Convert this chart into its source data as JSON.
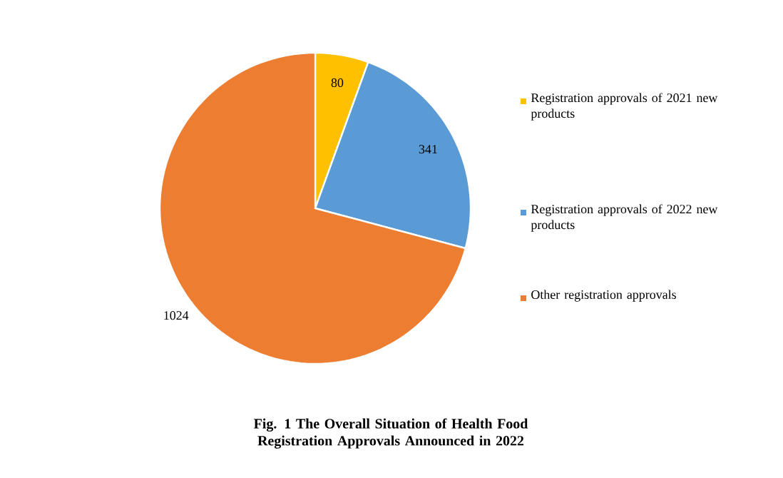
{
  "chart_data": {
    "type": "pie",
    "title": "Fig. 1 The Overall Situation of Health Food Registration Approvals Announced in 2022",
    "categories": [
      "Registration approvals of 2021 new products",
      "Registration approvals of 2022 new products",
      "Other registration approvals"
    ],
    "values": [
      80,
      341,
      1024
    ],
    "colors": [
      "#ffc000",
      "#5b9bd5",
      "#ed7d31"
    ],
    "data_labels": true,
    "legend": "right"
  }
}
